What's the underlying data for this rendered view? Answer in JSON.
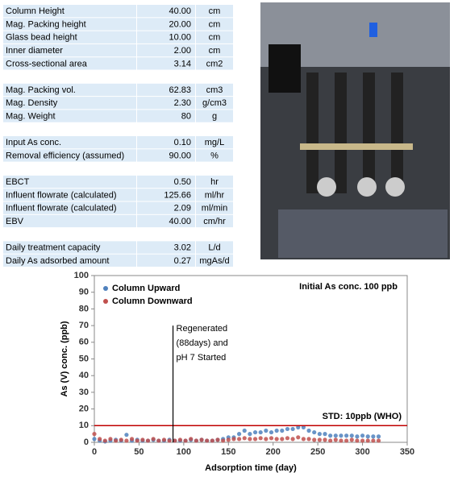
{
  "table": {
    "groups": [
      {
        "rows": [
          [
            "Column Height",
            "40.00",
            "cm"
          ],
          [
            "Mag. Packing height",
            "20.00",
            "cm"
          ],
          [
            "Glass bead height",
            "10.00",
            "cm"
          ],
          [
            "Inner diameter",
            "2.00",
            "cm"
          ],
          [
            "Cross-sectional area",
            "3.14",
            "cm2"
          ]
        ]
      },
      {
        "rows": [
          [
            "Mag. Packing vol.",
            "62.83",
            "cm3"
          ],
          [
            "Mag. Density",
            "2.30",
            "g/cm3"
          ],
          [
            "Mag. Weight",
            "80",
            "g"
          ]
        ]
      },
      {
        "rows": [
          [
            "Input As conc.",
            "0.10",
            "mg/L"
          ],
          [
            "Removal efficiency (assumed)",
            "90.00",
            "%"
          ]
        ]
      },
      {
        "rows": [
          [
            "EBCT",
            "0.50",
            "hr"
          ],
          [
            "Influent flowrate (calculated)",
            "125.66",
            "ml/hr"
          ],
          [
            "Influent flowrate (calculated)",
            "2.09",
            "ml/min"
          ],
          [
            "EBV",
            "40.00",
            "cm/hr"
          ]
        ]
      },
      {
        "rows": [
          [
            "Daily treatment capacity",
            "3.02",
            "L/d"
          ],
          [
            "Daily As adsorbed amount",
            "0.27",
            "mgAs/d"
          ]
        ]
      }
    ]
  },
  "chart_data": {
    "type": "scatter",
    "x_label": "Adsorption time (day)",
    "y_label": "As (V) conc. (ppb)",
    "xlim": [
      0,
      350
    ],
    "xticks": [
      0,
      50,
      100,
      150,
      200,
      250,
      300,
      350
    ],
    "ylim": [
      0,
      100
    ],
    "yticks": [
      0,
      10,
      20,
      30,
      40,
      50,
      60,
      70,
      80,
      90,
      100
    ],
    "legend": "top-left",
    "x": [
      0,
      6,
      12,
      18,
      24,
      30,
      36,
      42,
      48,
      54,
      60,
      66,
      72,
      78,
      84,
      90,
      96,
      102,
      108,
      114,
      120,
      126,
      132,
      138,
      144,
      150,
      156,
      162,
      168,
      174,
      180,
      186,
      192,
      198,
      204,
      210,
      216,
      222,
      228,
      234,
      240,
      246,
      252,
      258,
      264,
      270,
      276,
      282,
      288,
      294,
      300,
      306,
      312,
      318
    ],
    "series": [
      {
        "name": "Column Upward",
        "color": "#4f81bd",
        "values": [
          2,
          1,
          0.5,
          1,
          1.5,
          1,
          4.5,
          1,
          1.5,
          1,
          1,
          1.5,
          1,
          1,
          1.5,
          1,
          1,
          1,
          1.5,
          1,
          1.5,
          1,
          1,
          1.5,
          2,
          3,
          3,
          5,
          7,
          5,
          6,
          6,
          7,
          6,
          7,
          7,
          8,
          8,
          9,
          9,
          7,
          6,
          5,
          5,
          4,
          4,
          4,
          4,
          4,
          3.5,
          4,
          3.5,
          3.5,
          3.5
        ]
      },
      {
        "name": "Column Downward",
        "color": "#c0504d",
        "values": [
          5,
          2,
          1,
          2,
          1,
          1.5,
          1,
          2,
          1,
          1.5,
          1,
          2,
          1,
          1.5,
          1,
          1,
          1.5,
          1,
          2,
          1,
          1.5,
          1,
          1,
          1.5,
          1,
          1.5,
          2,
          2,
          2.5,
          2,
          2,
          2.5,
          2,
          2.5,
          2,
          2,
          2.5,
          2,
          3,
          2,
          2,
          1.5,
          1.5,
          1.5,
          1,
          1.5,
          1,
          1,
          1.5,
          1,
          1,
          1,
          1,
          1
        ]
      }
    ],
    "std_line": {
      "y": 10,
      "color": "#c00000",
      "label": "STD: 10ppb (WHO)",
      "label_color": "#00b0f0"
    },
    "event_line": {
      "x": 88,
      "y_top": 70
    },
    "annotations": [
      {
        "text": "Initial As conc. 100 ppb",
        "color": "#000000"
      },
      {
        "text": "Regenerated",
        "color": "#333333"
      },
      {
        "text": "(88days) and",
        "color": "#333333"
      },
      {
        "text": "pH 7 Started",
        "color": "#e03030"
      }
    ]
  }
}
